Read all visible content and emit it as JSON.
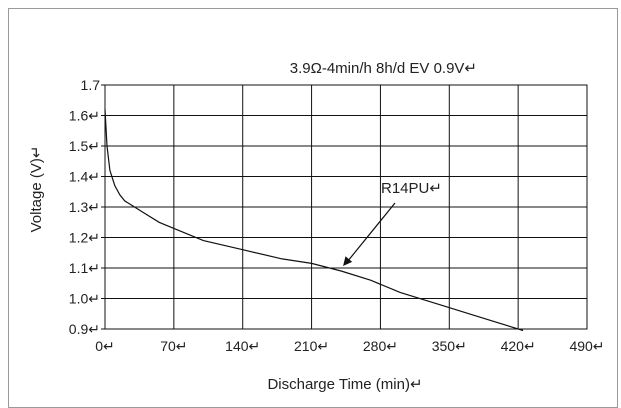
{
  "chart_data": {
    "type": "line",
    "title": "",
    "subtitle": "3.9Ω-4min/h    8h/d    EV 0.9V↵",
    "xlabel": "Discharge Time (min)↵",
    "ylabel": "Voltage (V)↵",
    "xlim": [
      0,
      490
    ],
    "ylim": [
      0.9,
      1.7
    ],
    "x_ticks": [
      0,
      70,
      140,
      210,
      280,
      350,
      420,
      490
    ],
    "x_tick_labels": [
      "0↵",
      "70↵",
      "140↵",
      "210↵",
      "280↵",
      "350↵",
      "420↵",
      "490↵"
    ],
    "y_ticks": [
      0.9,
      1.0,
      1.1,
      1.2,
      1.3,
      1.4,
      1.5,
      1.6,
      1.7
    ],
    "y_tick_labels": [
      "0.9↵",
      "1.0↵",
      "1.1↵",
      "1.2↵",
      "1.3↵",
      "1.4↵",
      "1.5↵",
      "1.6↵",
      "1.7"
    ],
    "grid": true,
    "series": [
      {
        "name": "R14PU↵",
        "x": [
          0,
          2,
          5,
          10,
          15,
          20,
          30,
          40,
          55,
          70,
          100,
          140,
          180,
          210,
          240,
          270,
          300,
          340,
          380,
          425
        ],
        "y": [
          1.62,
          1.5,
          1.42,
          1.37,
          1.34,
          1.32,
          1.3,
          1.28,
          1.25,
          1.23,
          1.19,
          1.16,
          1.13,
          1.115,
          1.09,
          1.06,
          1.02,
          0.98,
          0.94,
          0.895
        ]
      }
    ],
    "annotations": [
      {
        "text": "R14PU↵",
        "target_x": 240,
        "target_y": 1.1
      }
    ]
  }
}
